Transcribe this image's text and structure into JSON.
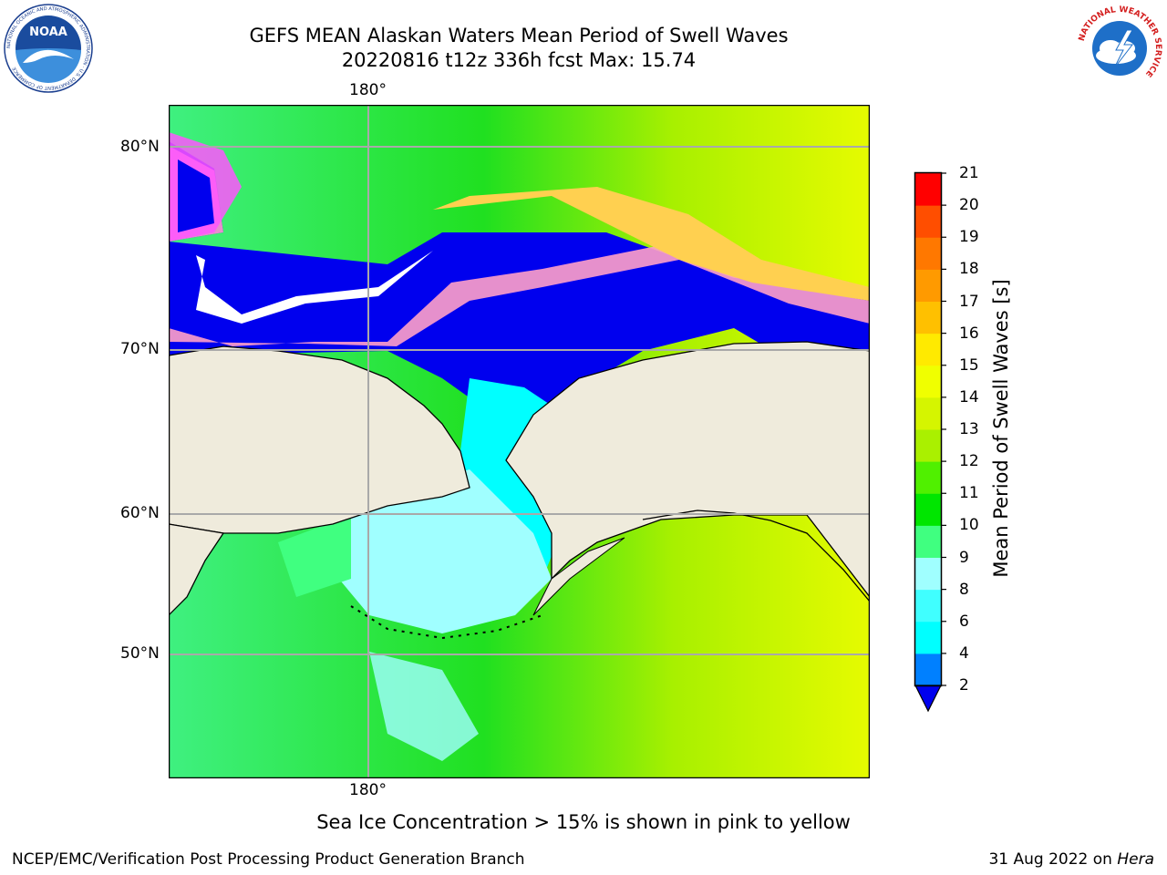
{
  "header": {
    "title_line1": "GEFS MEAN Alaskan Waters Mean Period of Swell Waves",
    "title_line2": "20220816 t12z 336h fcst   Max: 15.74"
  },
  "logos": {
    "left": "NOAA",
    "left_ring": "NATIONAL OCEANIC AND ATMOSPHERIC ADMINISTRATION · U.S. DEPARTMENT OF COMMERCE",
    "right_ring": "NATIONAL WEATHER SERVICE"
  },
  "map": {
    "lon_label_top": "180°",
    "lon_label_bottom": "180°",
    "lat_labels": [
      "80°N",
      "70°N",
      "60°N",
      "50°N"
    ],
    "land_color": "#efebdc",
    "ice_colors": [
      "#ff55ff",
      "#ffa0c8",
      "#ffd050"
    ]
  },
  "colorbar": {
    "label": "Mean Period of Swell Waves [s]",
    "ticks": [
      "21",
      "20",
      "19",
      "18",
      "17",
      "16",
      "15",
      "14",
      "13",
      "12",
      "11",
      "10",
      "9",
      "8",
      "6",
      "4",
      "2"
    ],
    "colors": [
      "#0000ee",
      "#0080ff",
      "#00ffff",
      "#40ffff",
      "#a0ffff",
      "#40ff80",
      "#00e600",
      "#50f000",
      "#aaf000",
      "#d5f500",
      "#f0ff00",
      "#ffea00",
      "#ffc000",
      "#ff9a00",
      "#ff7800",
      "#ff4e00",
      "#ff0000"
    ]
  },
  "footer": {
    "note": "Sea Ice Concentration > 15% is shown in pink to yellow",
    "credit_left": "NCEP/EMC/Verification Post Processing Product Generation Branch",
    "credit_date": "31 Aug 2022 on ",
    "credit_host": "Hera"
  }
}
